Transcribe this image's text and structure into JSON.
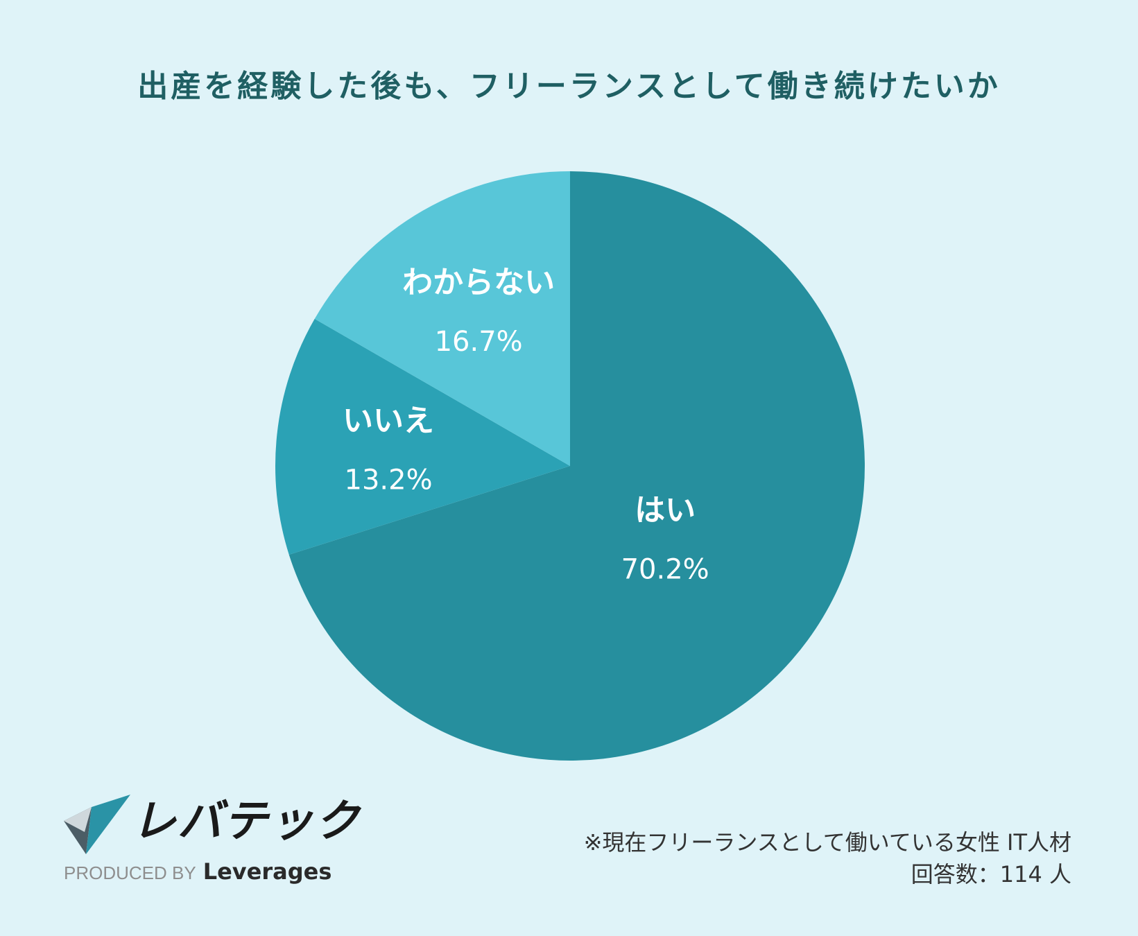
{
  "chart_data": {
    "type": "pie",
    "title": "出産を経験した後も、フリーランスとして働き続けたいか",
    "slices": [
      {
        "name": "はい",
        "value": 70.2,
        "label": "70.2%",
        "color": "#268f9e"
      },
      {
        "name": "いいえ",
        "value": 13.2,
        "label": "13.2%",
        "color": "#2ba2b5"
      },
      {
        "name": "わからない",
        "value": 16.7,
        "label": "16.7%",
        "color": "#58c6d8"
      }
    ],
    "start_angle": "12 o'clock",
    "direction": "clockwise",
    "legend": "none"
  },
  "colors": {
    "background": "#dff3f8",
    "title": "#1f5f63",
    "label": "#ffffff"
  },
  "logo": {
    "name": "レバテック",
    "produced_by": "PRODUCED BY",
    "brand": "Leverages"
  },
  "footnote": {
    "line1": "※現在フリーランスとして働いている女性 IT人材",
    "line2": "回答数：114 人"
  }
}
